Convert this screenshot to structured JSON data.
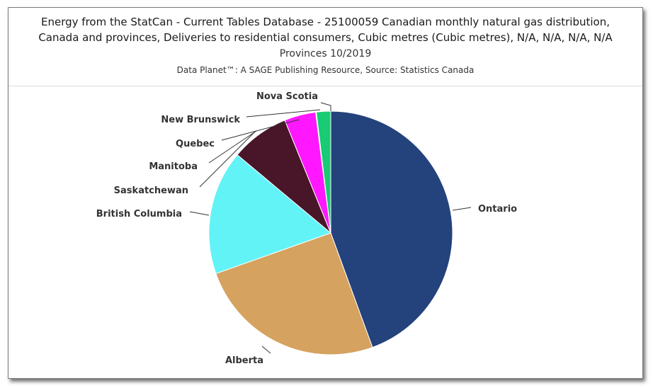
{
  "header": {
    "title": "Energy from the StatCan - Current Tables Database - 25100059 Canadian monthly natural gas distribution, Canada and provinces, Deliveries to residential consumers, Cubic metres (Cubic metres), N/A, N/A, N/A, N/A",
    "subtitle": "Provinces 10/2019",
    "source": "Data Planet™: A SAGE Publishing Resource, Source: Statistics Canada"
  },
  "chart_data": {
    "type": "pie",
    "title": "Energy from the StatCan - Current Tables Database - 25100059 Canadian monthly natural gas distribution, Canada and provinces, Deliveries to residential consumers, Cubic metres (Cubic metres), N/A, N/A, N/A, N/A",
    "subtitle": "Provinces 10/2019",
    "start_angle_deg": 0,
    "slices": [
      {
        "label": "Ontario",
        "value": 44.7,
        "color": "#24427c"
      },
      {
        "label": "Alberta",
        "value": 25.3,
        "color": "#d5a25f"
      },
      {
        "label": "British Columbia",
        "value": 16.6,
        "color": "#62f3f7"
      },
      {
        "label": "Saskatchewan",
        "value": 7.8,
        "color": "#491529"
      },
      {
        "label": "Manitoba",
        "value": 0.0,
        "color": "#491529"
      },
      {
        "label": "Quebec",
        "value": 4.2,
        "color": "#ff17ff"
      },
      {
        "label": "New Brunswick",
        "value": 0.1,
        "color": "#a0a0a0"
      },
      {
        "label": "Nova Scotia",
        "value": 1.9,
        "color": "#19cb74"
      }
    ]
  }
}
